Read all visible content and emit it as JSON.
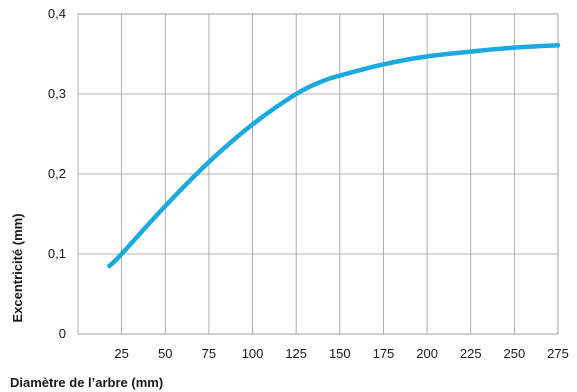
{
  "chart_data": {
    "type": "line",
    "xlabel": "Diamètre de l’arbre (mm)",
    "ylabel": "Excentricité (mm)",
    "xlim": [
      0,
      275
    ],
    "ylim": [
      0,
      0.4
    ],
    "x_ticks": [
      25,
      50,
      75,
      100,
      125,
      150,
      175,
      200,
      225,
      250,
      275
    ],
    "x_tick_labels": [
      "25",
      "50",
      "75",
      "100",
      "125",
      "150",
      "175",
      "200",
      "225",
      "250",
      "275"
    ],
    "y_ticks": [
      0,
      0.1,
      0.2,
      0.3,
      0.4
    ],
    "y_tick_labels": [
      "0",
      "0,1",
      "0,2",
      "0,3",
      "0,4"
    ],
    "grid": true,
    "line_color": "#1ba9e1",
    "series": [
      {
        "x": [
          18,
          25,
          50,
          75,
          100,
          125,
          140,
          150,
          175,
          200,
          225,
          250,
          275
        ],
        "y": [
          0.085,
          0.1,
          0.16,
          0.215,
          0.262,
          0.3,
          0.316,
          0.323,
          0.337,
          0.347,
          0.353,
          0.358,
          0.361
        ]
      }
    ]
  }
}
